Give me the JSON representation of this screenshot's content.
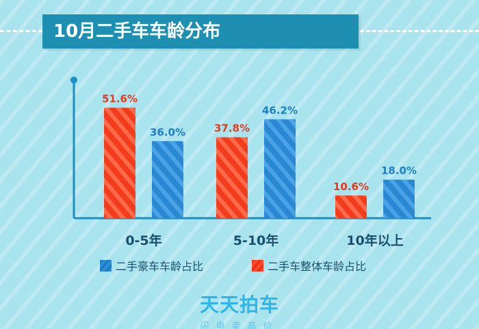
{
  "title": "10月二手车车龄分布",
  "chart_data": {
    "type": "bar",
    "categories": [
      "0-5年",
      "5-10年",
      "10年以上"
    ],
    "series": [
      {
        "name": "二手车整体车龄占比",
        "values": [
          51.6,
          37.8,
          10.6
        ],
        "labels": [
          "51.6%",
          "37.8%",
          "10.6%"
        ],
        "color": "#f23c1c",
        "label_color": "#e23b1d"
      },
      {
        "name": "二手豪车车龄占比",
        "values": [
          36.0,
          46.2,
          18.0
        ],
        "labels": [
          "36.0%",
          "46.2%",
          "18.0%"
        ],
        "color": "#2a87d2",
        "label_color": "#1f7fc3"
      }
    ],
    "ylim": [
      0,
      60
    ],
    "legend_position": "bottom",
    "grid": false
  },
  "legend": [
    {
      "label": "二手豪车车龄占比",
      "swatch": "blue"
    },
    {
      "label": "二手车整体车龄占比",
      "swatch": "red"
    }
  ],
  "brand": {
    "logo": "天天拍车",
    "slogan": "闪电卖高价"
  },
  "colors": {
    "background": "#a9e3ee",
    "banner": "#1e8fb0",
    "axis": "#1c8fbf",
    "category_text": "#1b4f6b",
    "brand": "#2fb6e6"
  }
}
